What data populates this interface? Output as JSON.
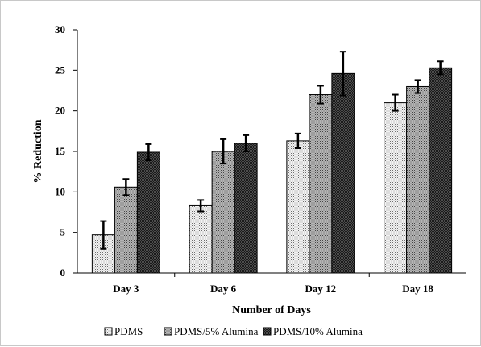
{
  "chart_data": {
    "type": "bar",
    "categories": [
      "Day 3",
      "Day 6",
      "Day 12",
      "Day 18"
    ],
    "series": [
      {
        "name": "PDMS",
        "values": [
          4.7,
          8.3,
          16.3,
          21.0
        ],
        "errors": [
          1.7,
          0.7,
          0.9,
          1.0
        ],
        "pattern": "dots-light"
      },
      {
        "name": "PDMS/5% Alumina",
        "values": [
          10.6,
          15.0,
          22.0,
          23.0
        ],
        "errors": [
          1.0,
          1.5,
          1.1,
          0.8
        ],
        "pattern": "dots-medium"
      },
      {
        "name": "PDMS/10% Alumina",
        "values": [
          14.9,
          16.0,
          24.6,
          25.3
        ],
        "errors": [
          1.0,
          1.0,
          2.7,
          0.8
        ],
        "pattern": "checker-dark"
      }
    ],
    "xlabel": "Number of Days",
    "ylabel": "% Reduction",
    "ylim": [
      0,
      30
    ],
    "yticks": [
      "0",
      "5",
      "10",
      "15",
      "20",
      "25",
      "30"
    ],
    "grid": false,
    "legend_position": "bottom"
  }
}
